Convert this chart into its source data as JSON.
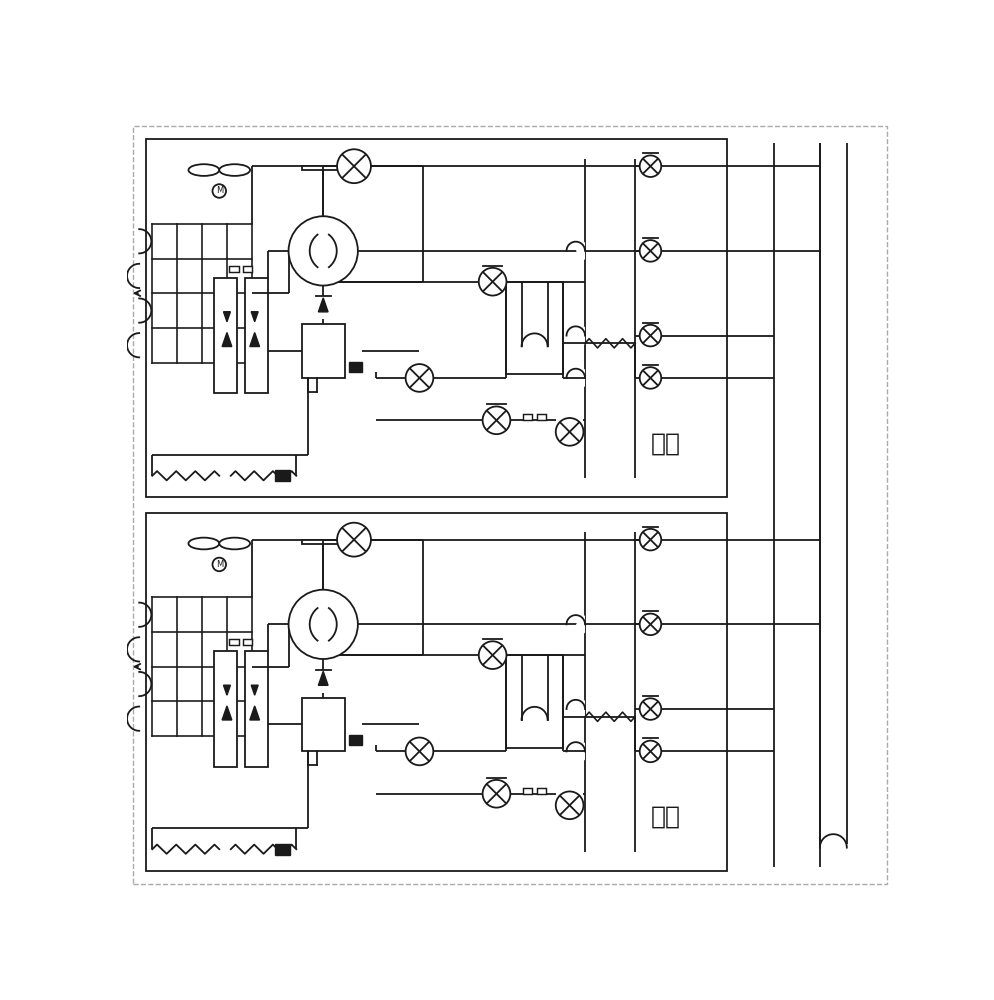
{
  "lc": "#1a1a1a",
  "lw": 1.3,
  "label_slave": "从机",
  "label_master": "主机",
  "bg": "#ffffff"
}
